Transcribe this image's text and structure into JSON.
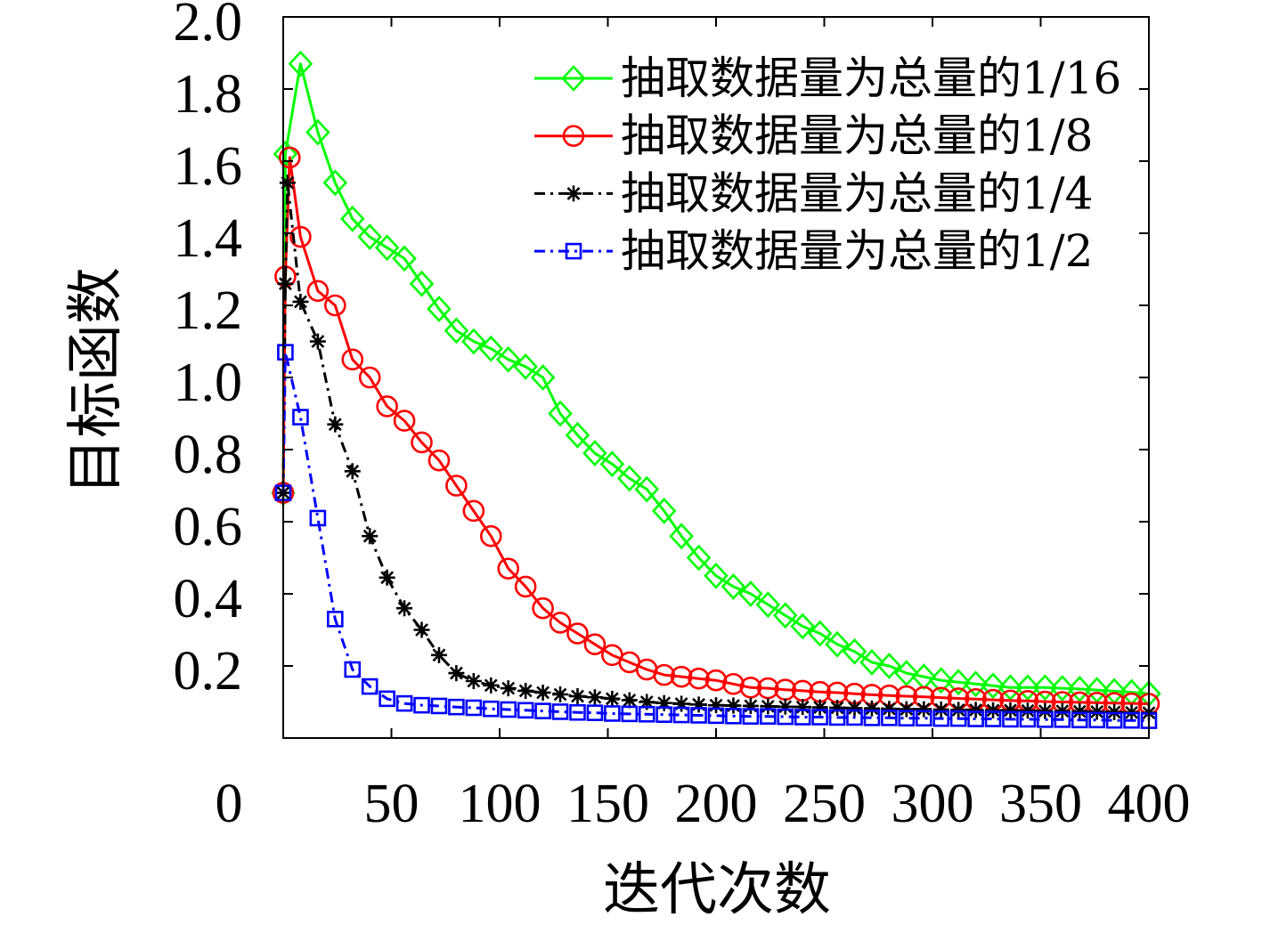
{
  "chart_data": {
    "type": "line",
    "xlabel": "迭代次数",
    "ylabel": "目标函数",
    "xlim": [
      0,
      400
    ],
    "ylim": [
      0,
      2.0
    ],
    "xticks": [
      "0",
      "50",
      "100",
      "150",
      "200",
      "250",
      "300",
      "350",
      "400"
    ],
    "yticks": [
      "0.2",
      "0.4",
      "0.6",
      "0.8",
      "1.0",
      "1.2",
      "1.4",
      "1.6",
      "1.8",
      "2.0"
    ],
    "grid": false,
    "legend_position": "top-right",
    "series": [
      {
        "name": "抽取数据量为总量的1/16",
        "color": "#00ff00",
        "marker": "diamond",
        "line_style": "solid",
        "x": [
          0,
          1,
          8,
          16,
          24,
          32,
          40,
          48,
          56,
          64,
          72,
          80,
          88,
          96,
          104,
          112,
          120,
          128,
          136,
          144,
          152,
          160,
          168,
          176,
          184,
          192,
          200,
          208,
          216,
          224,
          232,
          240,
          248,
          256,
          264,
          272,
          280,
          288,
          296,
          304,
          312,
          320,
          328,
          336,
          344,
          352,
          360,
          368,
          376,
          384,
          392,
          400
        ],
        "y": [
          0.68,
          1.62,
          1.87,
          1.68,
          1.54,
          1.44,
          1.39,
          1.36,
          1.33,
          1.26,
          1.19,
          1.13,
          1.1,
          1.08,
          1.05,
          1.03,
          1.0,
          0.9,
          0.84,
          0.79,
          0.76,
          0.72,
          0.69,
          0.63,
          0.56,
          0.5,
          0.45,
          0.42,
          0.4,
          0.37,
          0.34,
          0.31,
          0.29,
          0.26,
          0.24,
          0.21,
          0.2,
          0.18,
          0.17,
          0.16,
          0.155,
          0.15,
          0.145,
          0.14,
          0.14,
          0.14,
          0.138,
          0.136,
          0.133,
          0.13,
          0.127,
          0.123
        ]
      },
      {
        "name": "抽取数据量为总量的1/8",
        "color": "#ff0000",
        "marker": "circle",
        "line_style": "solid",
        "x": [
          0,
          1,
          3,
          8,
          16,
          24,
          32,
          40,
          48,
          56,
          64,
          72,
          80,
          88,
          96,
          104,
          112,
          120,
          128,
          136,
          144,
          152,
          160,
          168,
          176,
          184,
          192,
          200,
          208,
          216,
          224,
          232,
          240,
          248,
          256,
          264,
          272,
          280,
          288,
          296,
          304,
          312,
          320,
          328,
          336,
          344,
          352,
          360,
          368,
          376,
          384,
          392,
          400
        ],
        "y": [
          0.68,
          1.28,
          1.61,
          1.39,
          1.24,
          1.2,
          1.05,
          1.0,
          0.92,
          0.88,
          0.82,
          0.77,
          0.7,
          0.63,
          0.56,
          0.47,
          0.42,
          0.36,
          0.32,
          0.29,
          0.26,
          0.23,
          0.21,
          0.19,
          0.175,
          0.17,
          0.165,
          0.16,
          0.15,
          0.14,
          0.138,
          0.134,
          0.131,
          0.128,
          0.126,
          0.123,
          0.12,
          0.118,
          0.116,
          0.114,
          0.112,
          0.11,
          0.108,
          0.106,
          0.104,
          0.103,
          0.101,
          0.1,
          0.099,
          0.098,
          0.097,
          0.096,
          0.095
        ]
      },
      {
        "name": "抽取数据量为总量的1/4",
        "color": "#000000",
        "marker": "asterisk",
        "line_style": "dash-dot",
        "x": [
          0,
          1,
          2,
          8,
          16,
          24,
          32,
          40,
          48,
          56,
          64,
          72,
          80,
          88,
          96,
          104,
          112,
          120,
          128,
          136,
          144,
          152,
          160,
          168,
          176,
          184,
          192,
          200,
          208,
          216,
          224,
          232,
          240,
          248,
          256,
          264,
          272,
          280,
          288,
          296,
          304,
          312,
          320,
          328,
          336,
          344,
          352,
          360,
          368,
          376,
          384,
          392,
          400
        ],
        "y": [
          0.68,
          1.26,
          1.54,
          1.21,
          1.1,
          0.87,
          0.74,
          0.56,
          0.445,
          0.36,
          0.3,
          0.23,
          0.18,
          0.158,
          0.146,
          0.138,
          0.131,
          0.126,
          0.121,
          0.116,
          0.113,
          0.109,
          0.105,
          0.1,
          0.097,
          0.095,
          0.093,
          0.091,
          0.09,
          0.089,
          0.088,
          0.087,
          0.086,
          0.085,
          0.084,
          0.083,
          0.082,
          0.081,
          0.08,
          0.08,
          0.079,
          0.078,
          0.078,
          0.077,
          0.077,
          0.076,
          0.075,
          0.075,
          0.074,
          0.073,
          0.072,
          0.071,
          0.07
        ]
      },
      {
        "name": "抽取数据量为总量的1/2",
        "color": "#0000ff",
        "marker": "square",
        "line_style": "dash-dot",
        "x": [
          0,
          1,
          8,
          16,
          24,
          32,
          40,
          48,
          56,
          64,
          72,
          80,
          88,
          96,
          104,
          112,
          120,
          128,
          136,
          144,
          152,
          160,
          168,
          176,
          184,
          192,
          200,
          208,
          216,
          224,
          232,
          240,
          248,
          256,
          264,
          272,
          280,
          288,
          296,
          304,
          312,
          320,
          328,
          336,
          344,
          352,
          360,
          368,
          376,
          384,
          392,
          400
        ],
        "y": [
          0.68,
          1.07,
          0.89,
          0.61,
          0.33,
          0.19,
          0.143,
          0.109,
          0.096,
          0.091,
          0.089,
          0.086,
          0.084,
          0.081,
          0.079,
          0.077,
          0.075,
          0.073,
          0.071,
          0.07,
          0.068,
          0.067,
          0.066,
          0.065,
          0.064,
          0.063,
          0.062,
          0.061,
          0.06,
          0.06,
          0.059,
          0.058,
          0.058,
          0.057,
          0.057,
          0.056,
          0.056,
          0.055,
          0.055,
          0.054,
          0.054,
          0.053,
          0.053,
          0.052,
          0.052,
          0.051,
          0.051,
          0.05,
          0.05,
          0.049,
          0.049,
          0.048
        ]
      }
    ]
  }
}
